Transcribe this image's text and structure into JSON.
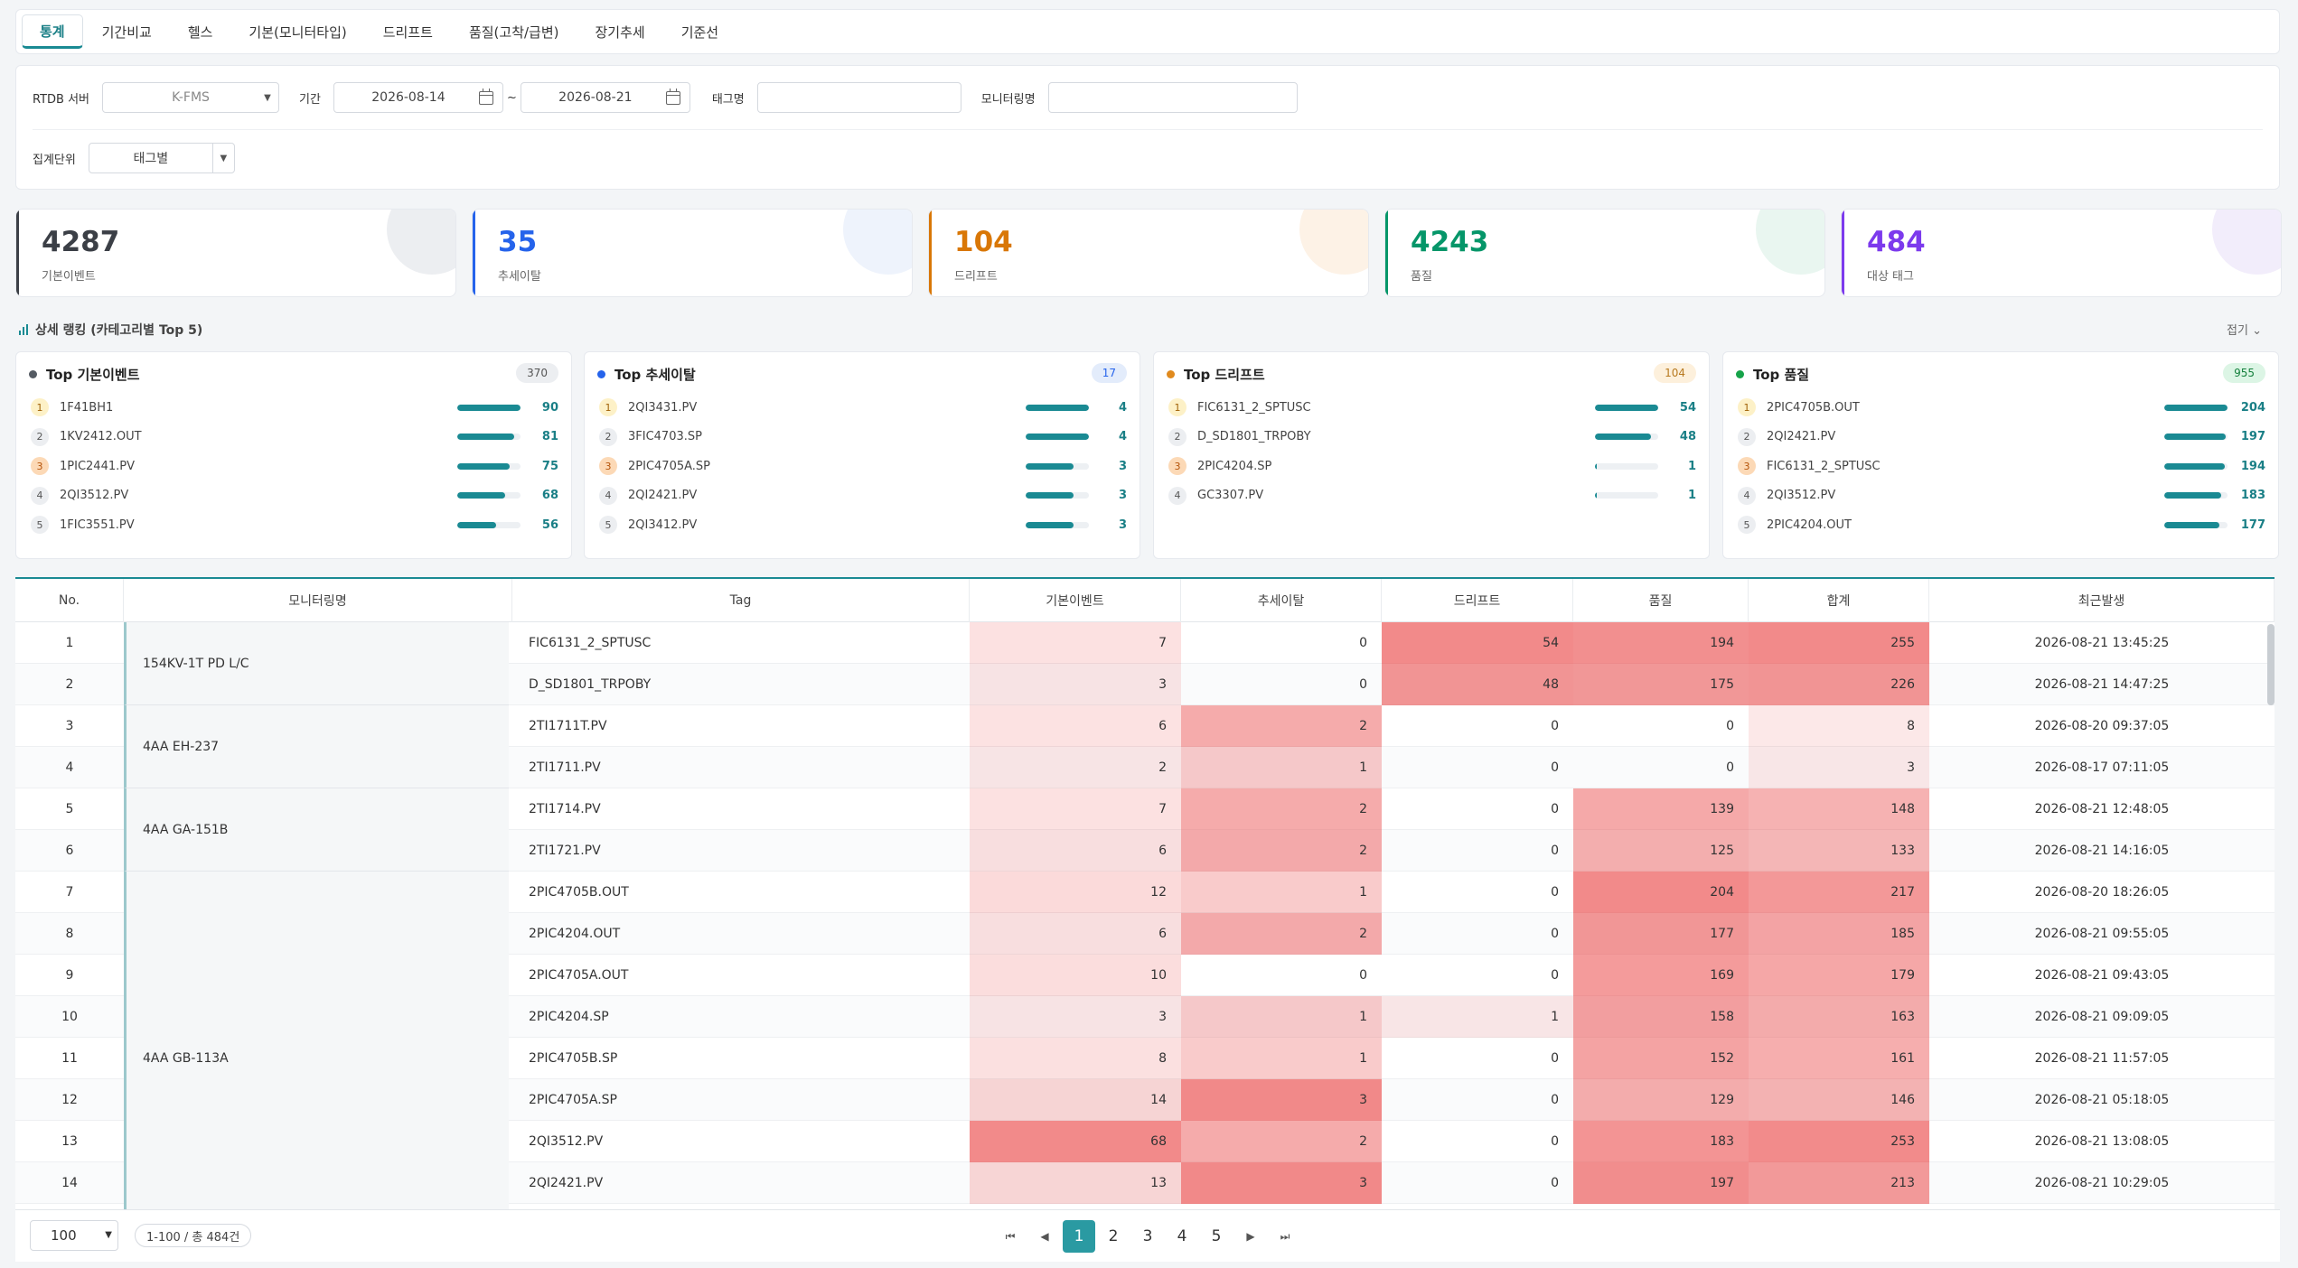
{
  "tabs": [
    "통계",
    "기간비교",
    "헬스",
    "기본(모니터타입)",
    "드리프트",
    "품질(고착/급변)",
    "장기추세",
    "기준선"
  ],
  "active_tab": "통계",
  "filters": {
    "server_label": "RTDB 서버",
    "server_value": "K-FMS",
    "period_label": "기간",
    "date_from": "2026-08-14",
    "date_to": "2026-08-21",
    "tilde": "~",
    "tag_label": "태그명",
    "tag_value": "",
    "monitor_label": "모니터링명",
    "monitor_value": "",
    "agg_label": "집계단위",
    "agg_value": "태그별"
  },
  "kpis": [
    {
      "value": "4287",
      "label": "기본이벤트",
      "color": "#3b3f46",
      "deco": "#eceef1"
    },
    {
      "value": "35",
      "label": "추세이탈",
      "color": "#2563eb",
      "deco": "#eef3fc"
    },
    {
      "value": "104",
      "label": "드리프트",
      "color": "#d97706",
      "deco": "#fdf2e6"
    },
    {
      "value": "4243",
      "label": "품질",
      "color": "#059669",
      "deco": "#e9f6f0"
    },
    {
      "value": "484",
      "label": "대상 태그",
      "color": "#7c3aed",
      "deco": "#f2edfb"
    }
  ],
  "section": {
    "title": "상세 랭킹 (카테고리별 Top 5)",
    "fold": "접기 ⌄"
  },
  "rankings": [
    {
      "title": "Top 기본이벤트",
      "dot": "#555b63",
      "badge": "370",
      "badge_bg": "#eceef1",
      "badge_fg": "#555",
      "items": [
        {
          "rank": "1",
          "name": "1F41BH1",
          "value": "90",
          "ratio": 1.0
        },
        {
          "rank": "2",
          "name": "1KV2412.OUT",
          "value": "81",
          "ratio": 0.9
        },
        {
          "rank": "3",
          "name": "1PIC2441.PV",
          "value": "75",
          "ratio": 0.83
        },
        {
          "rank": "4",
          "name": "2QI3512.PV",
          "value": "68",
          "ratio": 0.76
        },
        {
          "rank": "5",
          "name": "1FIC3551.PV",
          "value": "56",
          "ratio": 0.62
        }
      ]
    },
    {
      "title": "Top 추세이탈",
      "dot": "#2563eb",
      "badge": "17",
      "badge_bg": "#e3ecfb",
      "badge_fg": "#2563eb",
      "items": [
        {
          "rank": "1",
          "name": "2QI3431.PV",
          "value": "4",
          "ratio": 1.0
        },
        {
          "rank": "2",
          "name": "3FIC4703.SP",
          "value": "4",
          "ratio": 1.0
        },
        {
          "rank": "3",
          "name": "2PIC4705A.SP",
          "value": "3",
          "ratio": 0.75
        },
        {
          "rank": "4",
          "name": "2QI2421.PV",
          "value": "3",
          "ratio": 0.75
        },
        {
          "rank": "5",
          "name": "2QI3412.PV",
          "value": "3",
          "ratio": 0.75
        }
      ]
    },
    {
      "title": "Top 드리프트",
      "dot": "#e08a1e",
      "badge": "104",
      "badge_bg": "#fdf0dc",
      "badge_fg": "#b7791f",
      "items": [
        {
          "rank": "1",
          "name": "FIC6131_2_SPTUSC",
          "value": "54",
          "ratio": 1.0
        },
        {
          "rank": "2",
          "name": "D_SD1801_TRPOBY",
          "value": "48",
          "ratio": 0.89
        },
        {
          "rank": "3",
          "name": "2PIC4204.SP",
          "value": "1",
          "ratio": 0.03
        },
        {
          "rank": "4",
          "name": "GC3307.PV",
          "value": "1",
          "ratio": 0.03
        }
      ]
    },
    {
      "title": "Top 품질",
      "dot": "#16a34a",
      "badge": "955",
      "badge_bg": "#dcf5e5",
      "badge_fg": "#15803d",
      "items": [
        {
          "rank": "1",
          "name": "2PIC4705B.OUT",
          "value": "204",
          "ratio": 1.0
        },
        {
          "rank": "2",
          "name": "2QI2421.PV",
          "value": "197",
          "ratio": 0.97
        },
        {
          "rank": "3",
          "name": "FIC6131_2_SPTUSC",
          "value": "194",
          "ratio": 0.95
        },
        {
          "rank": "4",
          "name": "2QI3512.PV",
          "value": "183",
          "ratio": 0.9
        },
        {
          "rank": "5",
          "name": "2PIC4204.OUT",
          "value": "177",
          "ratio": 0.87
        }
      ]
    }
  ],
  "table": {
    "headers": [
      "No.",
      "모니터링명",
      "Tag",
      "기본이벤트",
      "추세이탈",
      "드리프트",
      "품질",
      "합계",
      "최근발생"
    ],
    "groups": [
      {
        "name": "154KV-1T PD L/C",
        "start": 0,
        "span": 2
      },
      {
        "name": "4AA EH-237",
        "start": 2,
        "span": 2
      },
      {
        "name": "4AA GA-151B",
        "start": 4,
        "span": 2
      },
      {
        "name": "4AA GB-113A",
        "start": 6,
        "span": 9
      }
    ],
    "rows": [
      {
        "no": "1",
        "tag": "FIC6131_2_SPTUSC",
        "basic": "7",
        "trend": "0",
        "drift": "54",
        "quality": "194",
        "total": "255",
        "recent": "2026-08-21 13:45:25"
      },
      {
        "no": "2",
        "tag": "D_SD1801_TRPOBY",
        "basic": "3",
        "trend": "0",
        "drift": "48",
        "quality": "175",
        "total": "226",
        "recent": "2026-08-21 14:47:25"
      },
      {
        "no": "3",
        "tag": "2TI1711T.PV",
        "basic": "6",
        "trend": "2",
        "drift": "0",
        "quality": "0",
        "total": "8",
        "recent": "2026-08-20 09:37:05"
      },
      {
        "no": "4",
        "tag": "2TI1711.PV",
        "basic": "2",
        "trend": "1",
        "drift": "0",
        "quality": "0",
        "total": "3",
        "recent": "2026-08-17 07:11:05"
      },
      {
        "no": "5",
        "tag": "2TI1714.PV",
        "basic": "7",
        "trend": "2",
        "drift": "0",
        "quality": "139",
        "total": "148",
        "recent": "2026-08-21 12:48:05"
      },
      {
        "no": "6",
        "tag": "2TI1721.PV",
        "basic": "6",
        "trend": "2",
        "drift": "0",
        "quality": "125",
        "total": "133",
        "recent": "2026-08-21 14:16:05"
      },
      {
        "no": "7",
        "tag": "2PIC4705B.OUT",
        "basic": "12",
        "trend": "1",
        "drift": "0",
        "quality": "204",
        "total": "217",
        "recent": "2026-08-20 18:26:05"
      },
      {
        "no": "8",
        "tag": "2PIC4204.OUT",
        "basic": "6",
        "trend": "2",
        "drift": "0",
        "quality": "177",
        "total": "185",
        "recent": "2026-08-21 09:55:05"
      },
      {
        "no": "9",
        "tag": "2PIC4705A.OUT",
        "basic": "10",
        "trend": "0",
        "drift": "0",
        "quality": "169",
        "total": "179",
        "recent": "2026-08-21 09:43:05"
      },
      {
        "no": "10",
        "tag": "2PIC4204.SP",
        "basic": "3",
        "trend": "1",
        "drift": "1",
        "quality": "158",
        "total": "163",
        "recent": "2026-08-21 09:09:05"
      },
      {
        "no": "11",
        "tag": "2PIC4705B.SP",
        "basic": "8",
        "trend": "1",
        "drift": "0",
        "quality": "152",
        "total": "161",
        "recent": "2026-08-21 11:57:05"
      },
      {
        "no": "12",
        "tag": "2PIC4705A.SP",
        "basic": "14",
        "trend": "3",
        "drift": "0",
        "quality": "129",
        "total": "146",
        "recent": "2026-08-21 05:18:05"
      },
      {
        "no": "13",
        "tag": "2QI3512.PV",
        "basic": "68",
        "trend": "2",
        "drift": "0",
        "quality": "183",
        "total": "253",
        "recent": "2026-08-21 13:08:05"
      },
      {
        "no": "14",
        "tag": "2QI2421.PV",
        "basic": "13",
        "trend": "3",
        "drift": "0",
        "quality": "197",
        "total": "213",
        "recent": "2026-08-21 10:29:05"
      }
    ],
    "heat_max": {
      "basic": 68,
      "trend": 3,
      "drift": 54,
      "quality": 204,
      "total": 255
    }
  },
  "footer": {
    "page_size": "100",
    "info": "1-100 / 총 484건",
    "pages": [
      "1",
      "2",
      "3",
      "4",
      "5"
    ],
    "current": "1"
  }
}
